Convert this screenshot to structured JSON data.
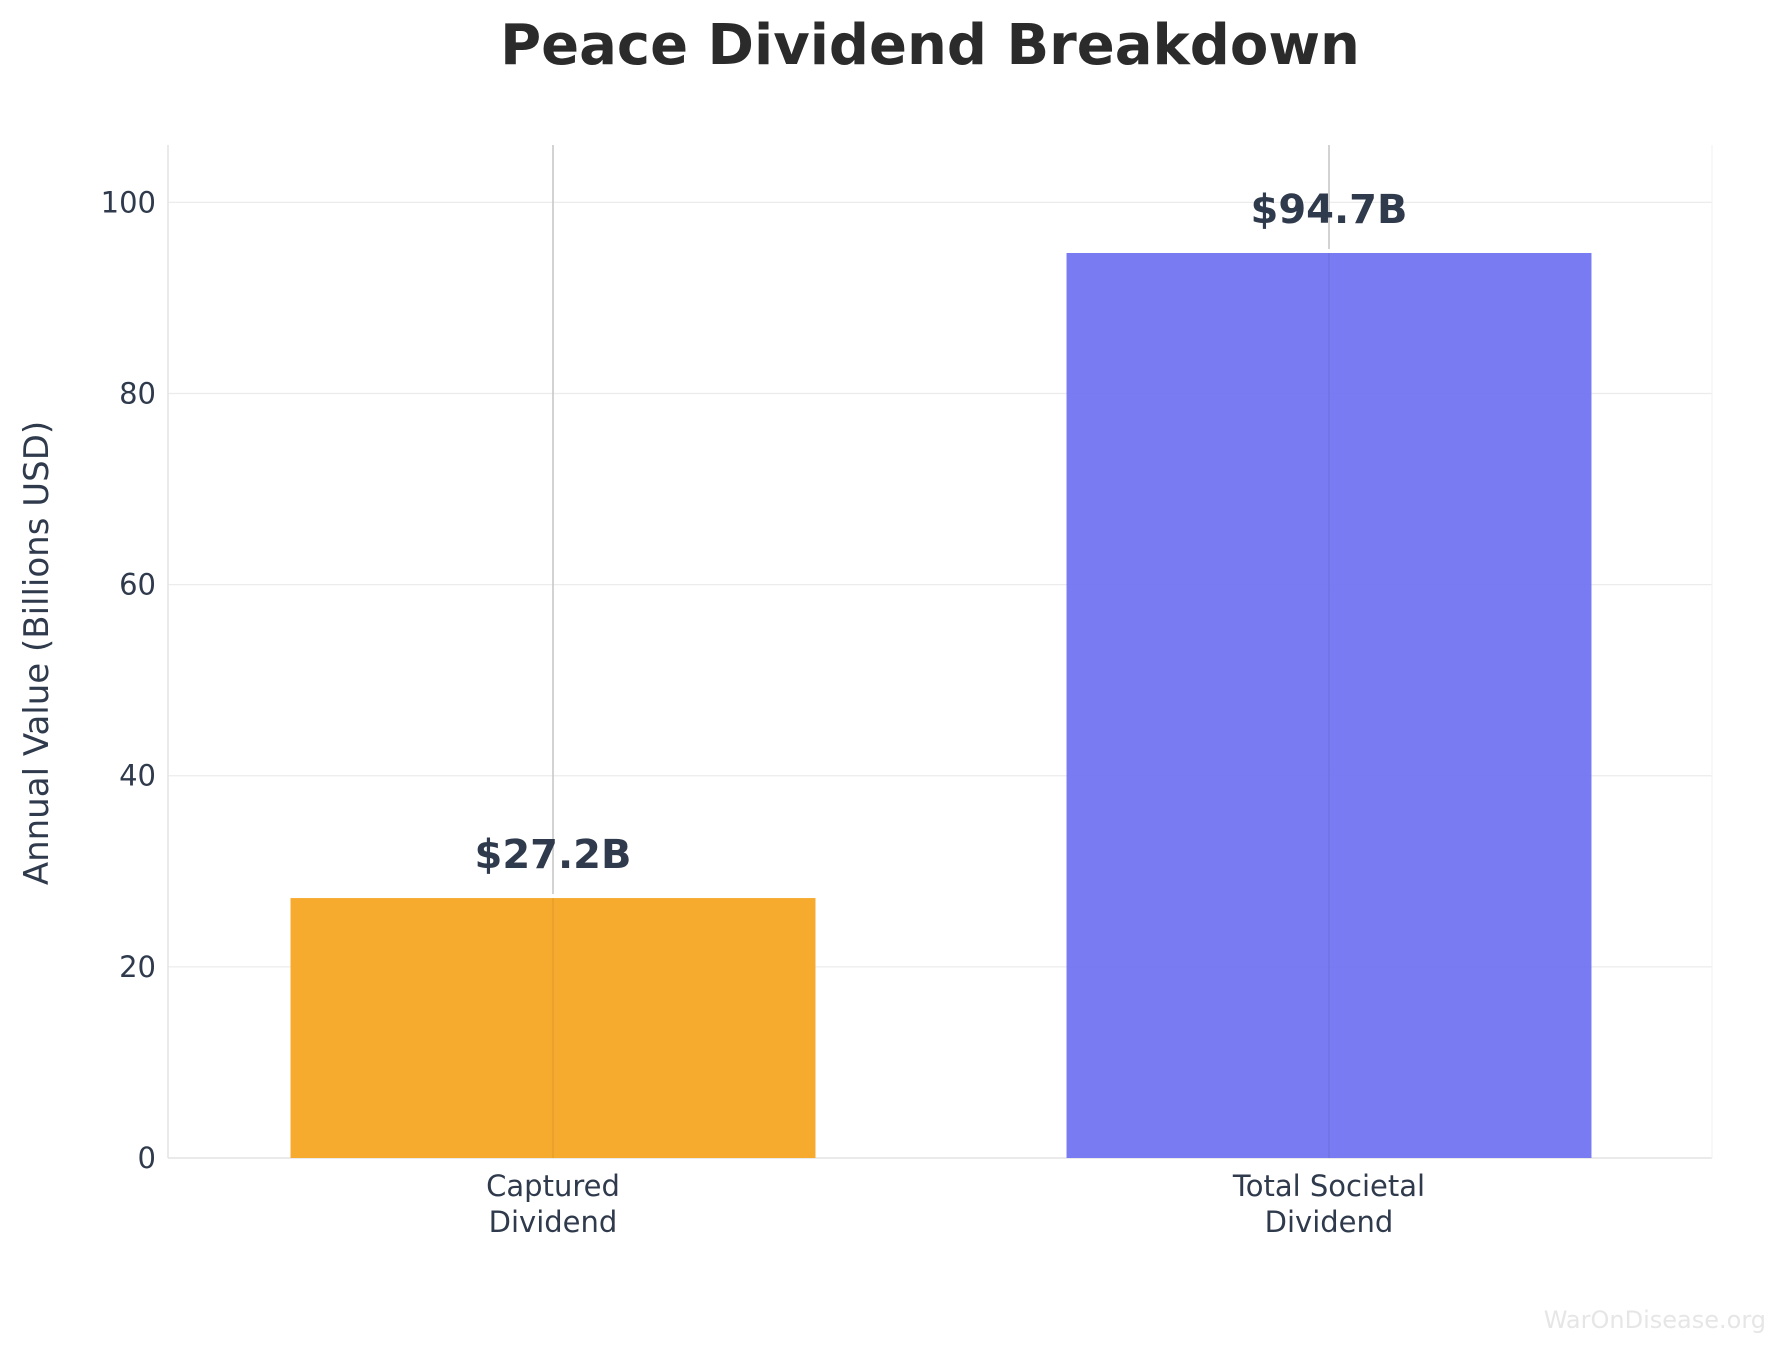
{
  "chart_data": {
    "type": "bar",
    "title": "Peace Dividend Breakdown",
    "xlabel": "",
    "ylabel": "Annual Value (Billions USD)",
    "categories": [
      [
        "Captured",
        "Dividend"
      ],
      [
        "Total Societal",
        "Dividend"
      ]
    ],
    "values": [
      27.2,
      94.7
    ],
    "value_labels": [
      "$27.2B",
      "$94.7B"
    ],
    "colors": [
      "#f5a623",
      "#7174f1"
    ],
    "ylim": [
      0,
      106
    ],
    "yticks": [
      0,
      20,
      40,
      60,
      80,
      100
    ],
    "grid": true,
    "legend": null
  },
  "watermark": "WarOnDisease.org"
}
